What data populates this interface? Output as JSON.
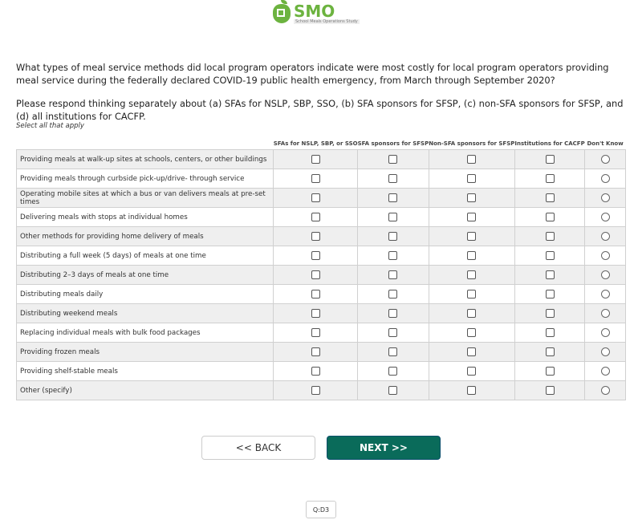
{
  "logo": {
    "text": "SMO",
    "subtitle": "School Meals Operations Study",
    "color": "#6cb33f"
  },
  "question": "What types of meal service methods did local program operators indicate were most costly for local program operators providing meal service during the federally declared COVID-19 public health emergency, from March through September 2020?",
  "instruction": "Please respond thinking separately about (a) SFAs for NSLP, SBP, SSO, (b) SFA sponsors for SFSP, (c) non-SFA sponsors for SFSP, and (d) all institutions for CACFP.",
  "select_all": "Select all that apply",
  "columns": [
    "SFAs for NSLP, SBP, or SSO",
    "SFA sponsors for SFSP",
    "Non-SFA sponsors for SFSP",
    "Institutions for CACFP",
    "Don't Know"
  ],
  "rows": [
    "Providing meals at walk-up sites at schools, centers, or other buildings",
    "Providing meals through curbside pick-up/drive- through service",
    "Operating mobile sites at which a bus or van delivers meals at pre-set times",
    "Delivering meals with stops at individual homes",
    "Other methods for providing home delivery of meals",
    "Distributing a full week (5 days) of meals at one time",
    "Distributing 2–3 days of meals at one time",
    "Distributing meals daily",
    "Distributing weekend meals",
    "Replacing individual meals with bulk food packages",
    "Providing frozen meals",
    "Providing shelf-stable meals",
    "Other (specify)"
  ],
  "buttons": {
    "back": "<< BACK",
    "next": "NEXT >>"
  },
  "question_id": "Q:D3",
  "accent": "#0a6b5a"
}
